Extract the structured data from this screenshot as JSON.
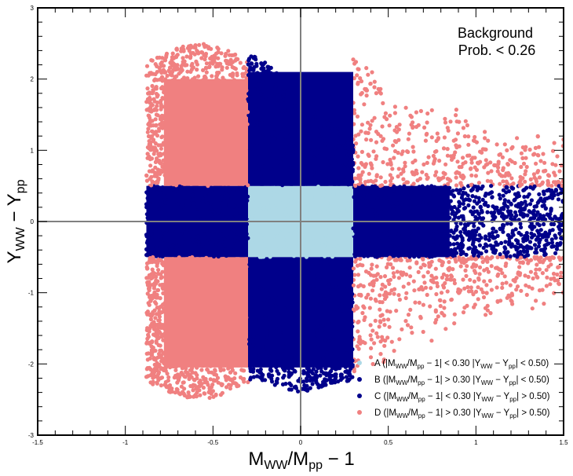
{
  "chart_data": {
    "type": "scatter",
    "xlabel_main": "M",
    "xlabel_sub1": "WW",
    "xlabel_mid": "/M",
    "xlabel_sub2": "pp",
    "xlabel_tail": " − 1",
    "ylabel_main1": "Y",
    "ylabel_sub1": "WW",
    "ylabel_mid": " − Y",
    "ylabel_sub2": "pp",
    "xlim": [
      -1.5,
      1.5
    ],
    "ylim": [
      -3,
      3
    ],
    "x_ticks": [
      -1.5,
      -1.0,
      -0.5,
      0.0,
      0.5,
      1.0,
      1.5
    ],
    "x_tick_labels": [
      "-1.5",
      "-1",
      "-0.5",
      "0",
      "0.5",
      "1",
      "1.5"
    ],
    "y_ticks": [
      -3,
      -2,
      -1,
      0,
      1,
      2,
      3
    ],
    "y_tick_labels": [
      "-3",
      "-2",
      "-1",
      "0",
      "1",
      "2",
      "3"
    ],
    "grid": false,
    "reference_lines": {
      "x": 0,
      "y": 0,
      "color": "#808080"
    },
    "annotation_line1": "Background",
    "annotation_line2": "Prob. < 0.26",
    "legend_position": "bottom-right",
    "cuts": {
      "mass_ratio": 0.3,
      "rapidity": 0.5
    },
    "series": [
      {
        "label": "A",
        "color": "#add8e6",
        "x_range": [
          -0.3,
          0.3
        ],
        "y_range": [
          -0.5,
          0.5
        ],
        "region": "center"
      },
      {
        "label": "B",
        "color": "#00008b",
        "x_range": [
          -0.88,
          1.5
        ],
        "y_range": [
          -0.5,
          0.5
        ],
        "region": "horizontal-band",
        "exclude_center": true
      },
      {
        "label": "C",
        "color": "#00008b",
        "x_range": [
          -0.3,
          0.3
        ],
        "y_range": [
          -2.7,
          2.7
        ],
        "region": "vertical-band",
        "exclude_center": true
      },
      {
        "label": "D",
        "color": "#f08080",
        "x_range": [
          -0.88,
          1.5
        ],
        "y_range": [
          -2.5,
          2.5
        ],
        "region": "corners"
      }
    ],
    "legend_entries": [
      {
        "prefix": "A (|M",
        "sub1": "WW",
        "mid1": "/M",
        "sub2": "pp",
        "mid2": " − 1| < 0.30  |Y",
        "sub3": "WW",
        "mid3": " − Y",
        "sub4": "pp",
        "tail": "| < 0.50)"
      },
      {
        "prefix": "B (|M",
        "sub1": "WW",
        "mid1": "/M",
        "sub2": "pp",
        "mid2": " − 1| > 0.30  |Y",
        "sub3": "WW",
        "mid3": " − Y",
        "sub4": "pp",
        "tail": "| < 0.50)"
      },
      {
        "prefix": "C (|M",
        "sub1": "WW",
        "mid1": "/M",
        "sub2": "pp",
        "mid2": " − 1| < 0.30  |Y",
        "sub3": "WW",
        "mid3": " − Y",
        "sub4": "pp",
        "tail": "| > 0.50)"
      },
      {
        "prefix": "D (|M",
        "sub1": "WW",
        "mid1": "/M",
        "sub2": "pp",
        "mid2": " − 1| > 0.30  |Y",
        "sub3": "WW",
        "mid3": " − Y",
        "sub4": "pp",
        "tail": "| > 0.50)"
      }
    ]
  }
}
